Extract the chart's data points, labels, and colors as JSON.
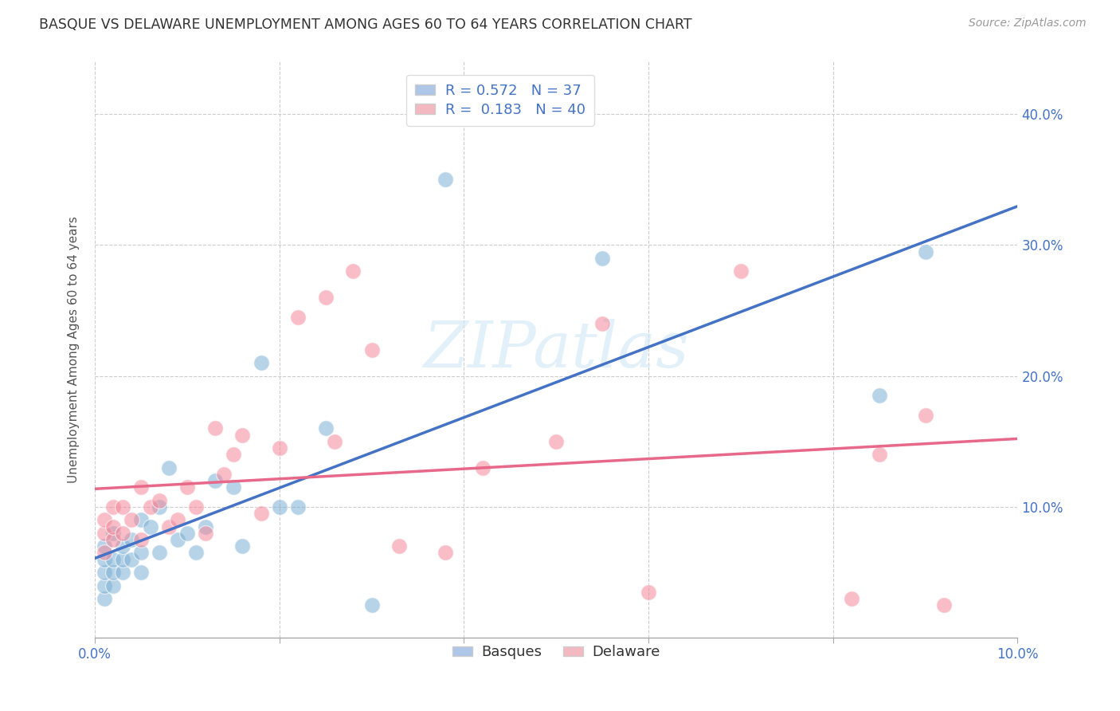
{
  "title": "BASQUE VS DELAWARE UNEMPLOYMENT AMONG AGES 60 TO 64 YEARS CORRELATION CHART",
  "source": "Source: ZipAtlas.com",
  "ylabel": "Unemployment Among Ages 60 to 64 years",
  "xlim": [
    0.0,
    0.1
  ],
  "ylim": [
    0.0,
    0.44
  ],
  "xticks": [
    0.0,
    0.02,
    0.04,
    0.06,
    0.08,
    0.1
  ],
  "yticks": [
    0.0,
    0.1,
    0.2,
    0.3,
    0.4
  ],
  "xticklabels": [
    "0.0%",
    "",
    "",
    "",
    "",
    "10.0%"
  ],
  "yticklabels_right": [
    "",
    "10.0%",
    "20.0%",
    "30.0%",
    "40.0%"
  ],
  "basques_color": "#7bafd4",
  "delaware_color": "#f4879a",
  "basques_edge": "#7bafd4",
  "delaware_edge": "#f4879a",
  "blue_line_color": "#4472c4",
  "pink_line_color": "#e8688a",
  "watermark_text": "ZIPatlas",
  "watermark_color": "#d0e8f5",
  "basques_x": [
    0.001,
    0.001,
    0.001,
    0.001,
    0.001,
    0.002,
    0.002,
    0.002,
    0.002,
    0.003,
    0.003,
    0.003,
    0.004,
    0.004,
    0.005,
    0.005,
    0.005,
    0.006,
    0.007,
    0.007,
    0.008,
    0.009,
    0.01,
    0.011,
    0.012,
    0.013,
    0.015,
    0.016,
    0.018,
    0.02,
    0.022,
    0.025,
    0.03,
    0.038,
    0.055,
    0.085,
    0.09
  ],
  "basques_y": [
    0.03,
    0.04,
    0.05,
    0.06,
    0.07,
    0.04,
    0.05,
    0.06,
    0.08,
    0.05,
    0.06,
    0.07,
    0.06,
    0.075,
    0.05,
    0.065,
    0.09,
    0.085,
    0.1,
    0.065,
    0.13,
    0.075,
    0.08,
    0.065,
    0.085,
    0.12,
    0.115,
    0.07,
    0.21,
    0.1,
    0.1,
    0.16,
    0.025,
    0.35,
    0.29,
    0.185,
    0.295
  ],
  "delaware_x": [
    0.001,
    0.001,
    0.001,
    0.002,
    0.002,
    0.002,
    0.003,
    0.003,
    0.004,
    0.005,
    0.005,
    0.006,
    0.007,
    0.008,
    0.009,
    0.01,
    0.011,
    0.012,
    0.013,
    0.014,
    0.015,
    0.016,
    0.018,
    0.02,
    0.022,
    0.025,
    0.026,
    0.028,
    0.03,
    0.033,
    0.038,
    0.042,
    0.05,
    0.055,
    0.06,
    0.07,
    0.082,
    0.085,
    0.09,
    0.092
  ],
  "delaware_y": [
    0.065,
    0.08,
    0.09,
    0.075,
    0.085,
    0.1,
    0.08,
    0.1,
    0.09,
    0.075,
    0.115,
    0.1,
    0.105,
    0.085,
    0.09,
    0.115,
    0.1,
    0.08,
    0.16,
    0.125,
    0.14,
    0.155,
    0.095,
    0.145,
    0.245,
    0.26,
    0.15,
    0.28,
    0.22,
    0.07,
    0.065,
    0.13,
    0.15,
    0.24,
    0.035,
    0.28,
    0.03,
    0.14,
    0.17,
    0.025
  ],
  "basques_R": 0.572,
  "basques_N": 37,
  "delaware_R": 0.183,
  "delaware_N": 40,
  "legend_blue_face": "#aec6e8",
  "legend_pink_face": "#f4b8c1",
  "background_color": "#ffffff",
  "grid_color": "#cccccc",
  "tick_color": "#4472c4",
  "title_color": "#333333",
  "source_color": "#999999"
}
